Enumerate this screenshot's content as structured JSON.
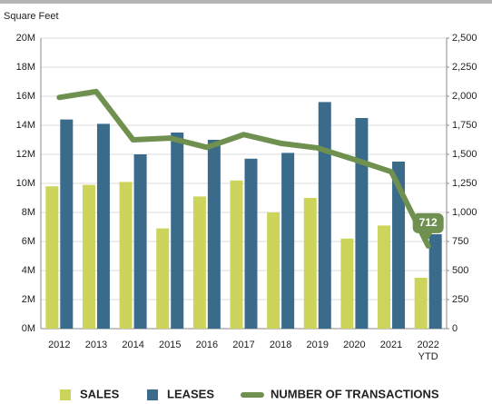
{
  "chart_data": {
    "type": "bar-line",
    "y_label": "Square Feet",
    "categories": [
      "2012",
      "2013",
      "2014",
      "2015",
      "2016",
      "2017",
      "2018",
      "2019",
      "2020",
      "2021",
      "2022\nYTD"
    ],
    "series": [
      {
        "name": "SALES",
        "color": "#ccd45b",
        "values": [
          9.8,
          9.9,
          10.1,
          6.9,
          9.1,
          10.2,
          8.0,
          9.0,
          6.2,
          7.1,
          3.5
        ]
      },
      {
        "name": "LEASES",
        "color": "#3b6b8b",
        "values": [
          14.4,
          14.1,
          12.0,
          13.5,
          13.0,
          11.7,
          12.1,
          15.6,
          14.5,
          11.5,
          6.5
        ]
      },
      {
        "name": "NUMBER OF TRANSACTIONS",
        "color": "#6f904f",
        "axis": "y2",
        "type": "line",
        "values": [
          1990,
          2040,
          1625,
          1640,
          1560,
          1670,
          1595,
          1555,
          1455,
          1350,
          712
        ]
      }
    ],
    "ylim": [
      0,
      20
    ],
    "yticks": [
      {
        "value": 0,
        "label": "0M"
      },
      {
        "value": 2,
        "label": "2M"
      },
      {
        "value": 4,
        "label": "4M"
      },
      {
        "value": 6,
        "label": "6M"
      },
      {
        "value": 8,
        "label": "8M"
      },
      {
        "value": 10,
        "label": "10M"
      },
      {
        "value": 12,
        "label": "12M"
      },
      {
        "value": 14,
        "label": "14M"
      },
      {
        "value": 16,
        "label": "16M"
      },
      {
        "value": 18,
        "label": "18M"
      },
      {
        "value": 20,
        "label": "20M"
      }
    ],
    "y2lim": [
      0,
      2500
    ],
    "y2ticks": [
      0,
      250,
      500,
      750,
      {
        "value": 1000,
        "label": "1,000"
      },
      {
        "value": 1250,
        "label": "1,250"
      },
      {
        "value": 1500,
        "label": "1,500"
      },
      {
        "value": 1750,
        "label": "1,750"
      },
      {
        "value": 2000,
        "label": "2,000"
      },
      {
        "value": 2250,
        "label": "2,250"
      },
      {
        "value": 2500,
        "label": "2,500"
      }
    ],
    "grid": true,
    "legend": "bottom"
  }
}
